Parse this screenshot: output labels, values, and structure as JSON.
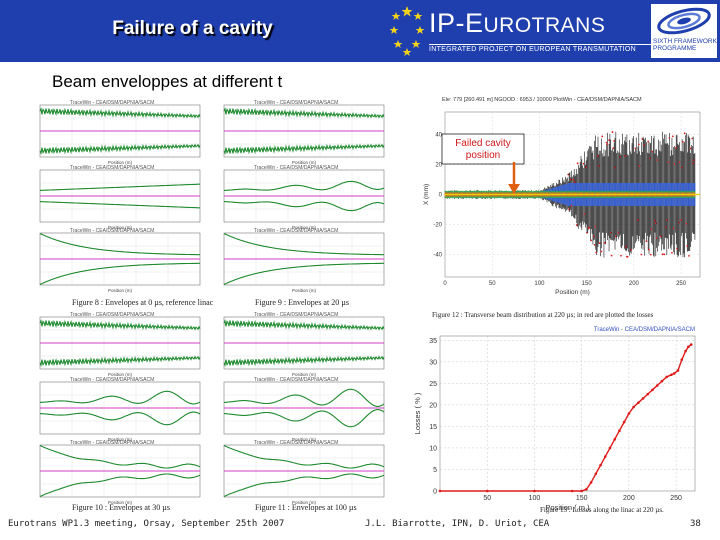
{
  "header": {
    "title": "Failure of a cavity",
    "logo_main_prefix": "IP-E",
    "logo_main_rest": "UROTRANS",
    "logo_sub": "INTEGRATED PROJECT ON EUROPEAN TRANSMUTATION",
    "fp_line1": "SIXTH FRAMEWORK",
    "fp_line2": "PROGRAMME"
  },
  "subtitle": "Beam enveloppes at different t",
  "figures": {
    "tw_header": "TraceWin - CEA/DSM/DAPNIA/SACM",
    "position_label": "Position (m)",
    "fig8": "Figure 8 : Envelopes at 0 µs, reference linac",
    "fig9": "Figure 9 : Envelopes at 20 µs",
    "fig10": "Figure 10 : Envelopes at 30 µs",
    "fig11": "Figure 11 : Envelopes at 100 µs",
    "fig12": "Figure 12 : Transverse beam distribution at 220 µs; in red are plotted the losses",
    "fig13": "Figure 13 : Losses along the linac at 220 µs."
  },
  "scatter": {
    "header": "Ele: 779 [260.491 m]   NGOOD : 6953 / 10000     PlotWin - CEA/DSM/DAPNIA/SACM",
    "annotation": "Failed cavity position",
    "xlabel": "Position (m)",
    "ylabel": "X (mm)",
    "xticks": [
      "0",
      "50",
      "100",
      "150",
      "200",
      "250"
    ],
    "yticks": [
      "40",
      "20",
      "0",
      "-20",
      "-40"
    ]
  },
  "chart_data": {
    "type": "line",
    "title": "",
    "header": "TraceWin - CEA/DSM/DAPNIA/SACM",
    "xlabel": "Position ( m )",
    "ylabel": "Losses ( % )",
    "xlim": [
      0,
      270
    ],
    "ylim": [
      0,
      36
    ],
    "xticks": [
      50,
      100,
      150,
      200,
      250
    ],
    "yticks": [
      0,
      5,
      10,
      15,
      20,
      25,
      30,
      35
    ],
    "grid": true,
    "x": [
      0,
      50,
      100,
      140,
      150,
      155,
      160,
      165,
      170,
      175,
      180,
      185,
      190,
      195,
      200,
      205,
      210,
      215,
      220,
      225,
      230,
      235,
      240,
      245,
      248,
      252,
      256,
      260,
      263,
      266
    ],
    "series": [
      {
        "values": [
          0,
          0,
          0,
          0,
          0,
          0.4,
          2,
          4,
          6,
          8,
          10,
          12,
          14,
          16,
          18,
          19.5,
          20.5,
          21.5,
          22.5,
          23.5,
          24.5,
          25.5,
          26.5,
          27,
          27.3,
          28,
          30.5,
          32.5,
          33.5,
          34
        ]
      }
    ]
  },
  "footer": {
    "left": "Eurotrans WP1.3 meeting, Orsay, September 25th 2007",
    "center": "J.L. Biarrotte, IPN, D. Uriot, CEA",
    "page": "38"
  }
}
